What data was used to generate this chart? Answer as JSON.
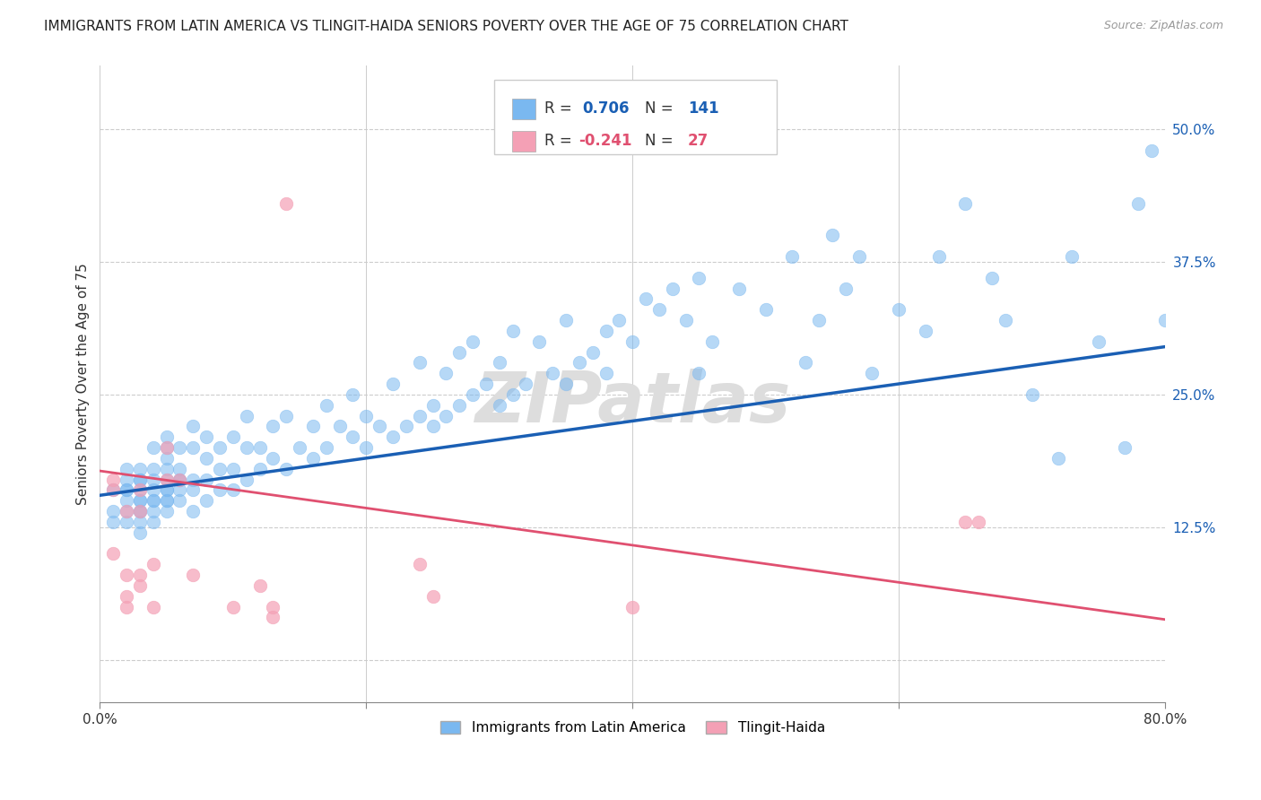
{
  "title": "IMMIGRANTS FROM LATIN AMERICA VS TLINGIT-HAIDA SENIORS POVERTY OVER THE AGE OF 75 CORRELATION CHART",
  "source": "Source: ZipAtlas.com",
  "ylabel": "Seniors Poverty Over the Age of 75",
  "xlim": [
    0.0,
    0.8
  ],
  "ylim": [
    -0.04,
    0.56
  ],
  "yticks": [
    0.0,
    0.125,
    0.25,
    0.375,
    0.5
  ],
  "ytick_labels": [
    "",
    "12.5%",
    "25.0%",
    "37.5%",
    "50.0%"
  ],
  "xticks": [
    0.0,
    0.2,
    0.4,
    0.6,
    0.8
  ],
  "xtick_labels": [
    "0.0%",
    "",
    "",
    "",
    "80.0%"
  ],
  "blue_R": 0.706,
  "blue_N": 141,
  "pink_R": -0.241,
  "pink_N": 27,
  "blue_color": "#7ab8f0",
  "pink_color": "#f4a0b5",
  "blue_line_color": "#1a5fb4",
  "pink_line_color": "#e05070",
  "background_color": "#ffffff",
  "watermark": "ZIPatlas",
  "title_fontsize": 11,
  "blue_scatter_x": [
    0.01,
    0.01,
    0.01,
    0.02,
    0.02,
    0.02,
    0.02,
    0.02,
    0.02,
    0.02,
    0.03,
    0.03,
    0.03,
    0.03,
    0.03,
    0.03,
    0.03,
    0.03,
    0.03,
    0.03,
    0.04,
    0.04,
    0.04,
    0.04,
    0.04,
    0.04,
    0.04,
    0.04,
    0.05,
    0.05,
    0.05,
    0.05,
    0.05,
    0.05,
    0.05,
    0.05,
    0.05,
    0.05,
    0.06,
    0.06,
    0.06,
    0.06,
    0.06,
    0.06,
    0.07,
    0.07,
    0.07,
    0.07,
    0.07,
    0.08,
    0.08,
    0.08,
    0.08,
    0.09,
    0.09,
    0.09,
    0.1,
    0.1,
    0.1,
    0.11,
    0.11,
    0.11,
    0.12,
    0.12,
    0.13,
    0.13,
    0.14,
    0.14,
    0.15,
    0.16,
    0.16,
    0.17,
    0.17,
    0.18,
    0.19,
    0.19,
    0.2,
    0.2,
    0.21,
    0.22,
    0.22,
    0.23,
    0.24,
    0.24,
    0.25,
    0.25,
    0.26,
    0.26,
    0.27,
    0.27,
    0.28,
    0.28,
    0.29,
    0.3,
    0.3,
    0.31,
    0.31,
    0.32,
    0.33,
    0.34,
    0.35,
    0.35,
    0.36,
    0.37,
    0.38,
    0.38,
    0.39,
    0.4,
    0.41,
    0.42,
    0.43,
    0.44,
    0.45,
    0.45,
    0.46,
    0.48,
    0.5,
    0.52,
    0.53,
    0.54,
    0.55,
    0.56,
    0.57,
    0.58,
    0.6,
    0.62,
    0.63,
    0.65,
    0.67,
    0.68,
    0.7,
    0.72,
    0.73,
    0.75,
    0.77,
    0.78,
    0.79,
    0.8
  ],
  "blue_scatter_y": [
    0.14,
    0.16,
    0.13,
    0.13,
    0.14,
    0.15,
    0.16,
    0.17,
    0.18,
    0.16,
    0.12,
    0.13,
    0.14,
    0.15,
    0.15,
    0.16,
    0.17,
    0.17,
    0.18,
    0.14,
    0.13,
    0.14,
    0.15,
    0.16,
    0.17,
    0.18,
    0.2,
    0.15,
    0.14,
    0.15,
    0.15,
    0.16,
    0.17,
    0.18,
    0.19,
    0.2,
    0.21,
    0.16,
    0.15,
    0.16,
    0.17,
    0.18,
    0.2,
    0.17,
    0.14,
    0.16,
    0.17,
    0.2,
    0.22,
    0.15,
    0.17,
    0.19,
    0.21,
    0.16,
    0.18,
    0.2,
    0.16,
    0.18,
    0.21,
    0.17,
    0.2,
    0.23,
    0.18,
    0.2,
    0.19,
    0.22,
    0.18,
    0.23,
    0.2,
    0.19,
    0.22,
    0.2,
    0.24,
    0.22,
    0.21,
    0.25,
    0.2,
    0.23,
    0.22,
    0.21,
    0.26,
    0.22,
    0.23,
    0.28,
    0.22,
    0.24,
    0.23,
    0.27,
    0.24,
    0.29,
    0.25,
    0.3,
    0.26,
    0.24,
    0.28,
    0.25,
    0.31,
    0.26,
    0.3,
    0.27,
    0.26,
    0.32,
    0.28,
    0.29,
    0.27,
    0.31,
    0.32,
    0.3,
    0.34,
    0.33,
    0.35,
    0.32,
    0.36,
    0.27,
    0.3,
    0.35,
    0.33,
    0.38,
    0.28,
    0.32,
    0.4,
    0.35,
    0.38,
    0.27,
    0.33,
    0.31,
    0.38,
    0.43,
    0.36,
    0.32,
    0.25,
    0.19,
    0.38,
    0.3,
    0.2,
    0.43,
    0.48,
    0.32
  ],
  "pink_scatter_x": [
    0.01,
    0.01,
    0.01,
    0.02,
    0.02,
    0.02,
    0.02,
    0.03,
    0.03,
    0.03,
    0.03,
    0.04,
    0.04,
    0.05,
    0.05,
    0.06,
    0.07,
    0.1,
    0.12,
    0.13,
    0.13,
    0.14,
    0.24,
    0.25,
    0.4,
    0.65,
    0.66
  ],
  "pink_scatter_y": [
    0.1,
    0.16,
    0.17,
    0.05,
    0.06,
    0.08,
    0.14,
    0.07,
    0.08,
    0.14,
    0.16,
    0.05,
    0.09,
    0.17,
    0.2,
    0.17,
    0.08,
    0.05,
    0.07,
    0.04,
    0.05,
    0.43,
    0.09,
    0.06,
    0.05,
    0.13,
    0.13
  ],
  "blue_line_y_start": 0.155,
  "blue_line_y_end": 0.295,
  "pink_line_y_start": 0.178,
  "pink_line_y_end": 0.038
}
